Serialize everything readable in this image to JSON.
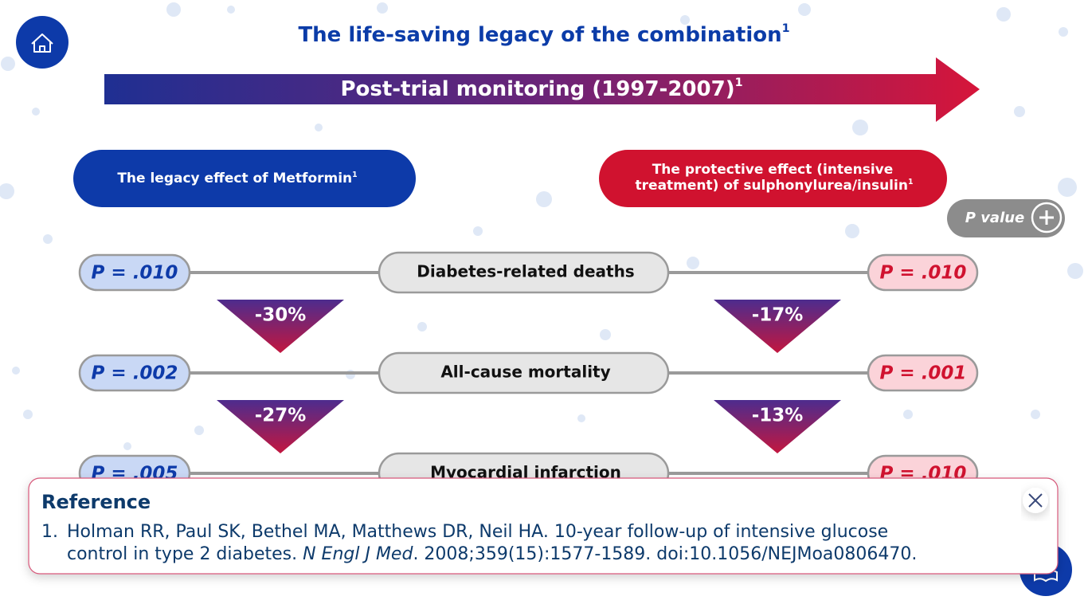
{
  "header": {
    "title": "The life-saving legacy of the combination",
    "title_ref": "1"
  },
  "banner": {
    "text": "Post-trial monitoring (1997-2007)",
    "ref": "1"
  },
  "groups": {
    "left": {
      "text": "The legacy effect of Metformin",
      "ref": "1"
    },
    "right": {
      "lines": [
        "The protective effect (intensive",
        "treatment) of sulphonylurea/insulin"
      ],
      "ref": "1"
    }
  },
  "p_value_button": {
    "label": "P value"
  },
  "rows": [
    {
      "label": "Diabetes-related deaths",
      "left_p": "P = .010",
      "right_p": "P = .010"
    },
    {
      "label": "All-cause mortality",
      "left_p": "P = .002",
      "right_p": "P = .001"
    },
    {
      "label": "Myocardial infarction",
      "left_p": "P = .005",
      "right_p": "P = .010"
    }
  ],
  "reductions": [
    {
      "left": "-30%",
      "right": "-17%"
    },
    {
      "left": "-27%",
      "right": "-13%"
    }
  ],
  "reference": {
    "heading": "Reference",
    "number": "1.",
    "line1": "Holman RR, Paul SK, Bethel MA, Matthews DR, Neil HA. 10-year follow-up of intensive glucose",
    "line2_start": "control in type 2 diabetes.",
    "journal": "N Engl J Med",
    "line2_end": ". 2008;359(15):1577-1589. doi:10.1056/NEJMoa0806470."
  }
}
